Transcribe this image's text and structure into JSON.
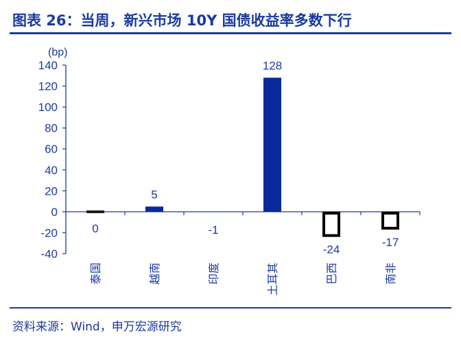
{
  "title": "图表 26：当周，新兴市场 10Y 国债收益率多数下行",
  "source": "资料来源：Wind，申万宏源研究",
  "colors": {
    "accent": "#1a3aa0",
    "bar_positive": "#0a2a9a",
    "bar_negative_outline": "#000000"
  },
  "chart_data": {
    "type": "bar",
    "unit": "(bp)",
    "categories": [
      "泰国",
      "越南",
      "印度",
      "土耳其",
      "巴西",
      "南非"
    ],
    "values": [
      0,
      5,
      -1,
      128,
      -24,
      -17
    ],
    "ylim": [
      -40,
      140
    ],
    "yticks": [
      -40,
      -20,
      0,
      20,
      40,
      60,
      80,
      100,
      120,
      140
    ],
    "grid": false,
    "legend": "none"
  }
}
